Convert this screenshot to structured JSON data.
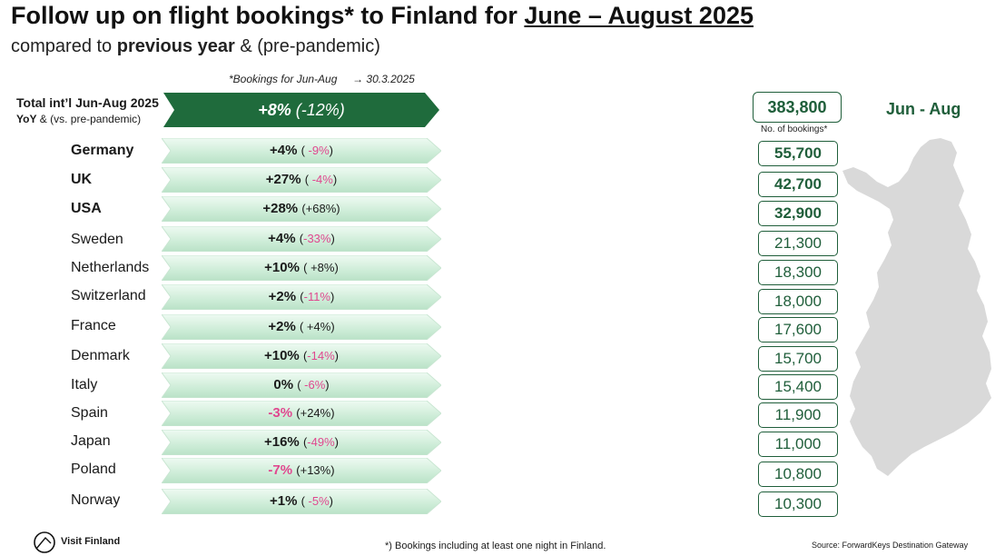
{
  "header": {
    "title_prefix": "Follow up on flight bookings* to Finland for ",
    "title_period": "June – August 2025",
    "subtitle_prefix": "compared to ",
    "subtitle_bold": "previous year",
    "subtitle_suffix": " & (pre-pandemic)",
    "note": "*Bookings for Jun-Aug",
    "note_date": "30.3.2025"
  },
  "total": {
    "label": "Total int’l Jun-Aug 2025",
    "sub_bold": "YoY",
    "sub_rest": " & (vs. pre-pandemic)",
    "yoy": "+8%",
    "pre": " (-12%)",
    "bookings": "383,800",
    "bookings_label": "No. of bookings*",
    "period": "Jun - Aug"
  },
  "countries": [
    {
      "name": "Germany",
      "bold": true,
      "yoy": "+4%",
      "yoy_neg": false,
      "pre": "-9%",
      "pre_neg": true,
      "pre_open": "(  ",
      "pre_close": ")",
      "bookings": "55,700"
    },
    {
      "name": "UK",
      "bold": true,
      "yoy": "+27%",
      "yoy_neg": false,
      "pre": "-4%",
      "pre_neg": true,
      "pre_open": "(  ",
      "pre_close": ")",
      "bookings": "42,700"
    },
    {
      "name": "USA",
      "bold": true,
      "yoy": "+28%",
      "yoy_neg": false,
      "pre": "+68%",
      "pre_neg": false,
      "pre_open": "(",
      "pre_close": ")",
      "bookings": "32,900"
    },
    {
      "name": "Sweden",
      "bold": false,
      "yoy": "+4%",
      "yoy_neg": false,
      "pre": "-33%",
      "pre_neg": true,
      "pre_open": "(",
      "pre_close": ")",
      "bookings": "21,300"
    },
    {
      "name": "Netherlands",
      "bold": false,
      "yoy": "+10%",
      "yoy_neg": false,
      "pre": "+8%",
      "pre_neg": false,
      "pre_open": "( ",
      "pre_close": ")",
      "bookings": "18,300"
    },
    {
      "name": "Switzerland",
      "bold": false,
      "yoy": "+2%",
      "yoy_neg": false,
      "pre": "-11%",
      "pre_neg": true,
      "pre_open": "(",
      "pre_close": ")",
      "bookings": "18,000"
    },
    {
      "name": "France",
      "bold": false,
      "yoy": "+2%",
      "yoy_neg": false,
      "pre": "+4%",
      "pre_neg": false,
      "pre_open": "( ",
      "pre_close": ")",
      "bookings": "17,600"
    },
    {
      "name": "Denmark",
      "bold": false,
      "yoy": "+10%",
      "yoy_neg": false,
      "pre": "-14%",
      "pre_neg": true,
      "pre_open": "(",
      "pre_close": ")",
      "bookings": "15,700"
    },
    {
      "name": "Italy",
      "bold": false,
      "yoy": "0%",
      "yoy_neg": false,
      "pre": "-6%",
      "pre_neg": true,
      "pre_open": "(  ",
      "pre_close": ")",
      "bookings": "15,400"
    },
    {
      "name": "Spain",
      "bold": false,
      "yoy": "-3%",
      "yoy_neg": true,
      "pre": "+24%",
      "pre_neg": false,
      "pre_open": "(",
      "pre_close": ")",
      "bookings": "11,900"
    },
    {
      "name": "Japan",
      "bold": false,
      "yoy": "+16%",
      "yoy_neg": false,
      "pre": "-49%",
      "pre_neg": true,
      "pre_open": "(",
      "pre_close": ")",
      "bookings": "11,000"
    },
    {
      "name": "Poland",
      "bold": false,
      "yoy": "-7%",
      "yoy_neg": true,
      "pre": "+13%",
      "pre_neg": false,
      "pre_open": "(",
      "pre_close": ")",
      "bookings": "10,800"
    },
    {
      "name": "Norway",
      "bold": false,
      "yoy": "+1%",
      "yoy_neg": false,
      "pre": "-5%",
      "pre_neg": true,
      "pre_open": "(  ",
      "pre_close": ")",
      "bookings": "10,300"
    }
  ],
  "footer": {
    "logo_text": "Visit Finland",
    "footnote": "*) Bookings including at least one night in Finland.",
    "source": "Source: ForwardKeys Destination Gateway"
  },
  "colors": {
    "dark_green": "#1f6b3c",
    "light_green": "#d6f0df",
    "negative_pink": "#e0488f",
    "map_gray": "#d9d9d9"
  },
  "icons": [
    "arrow-right-icon",
    "finland-map",
    "visit-finland-logo"
  ]
}
